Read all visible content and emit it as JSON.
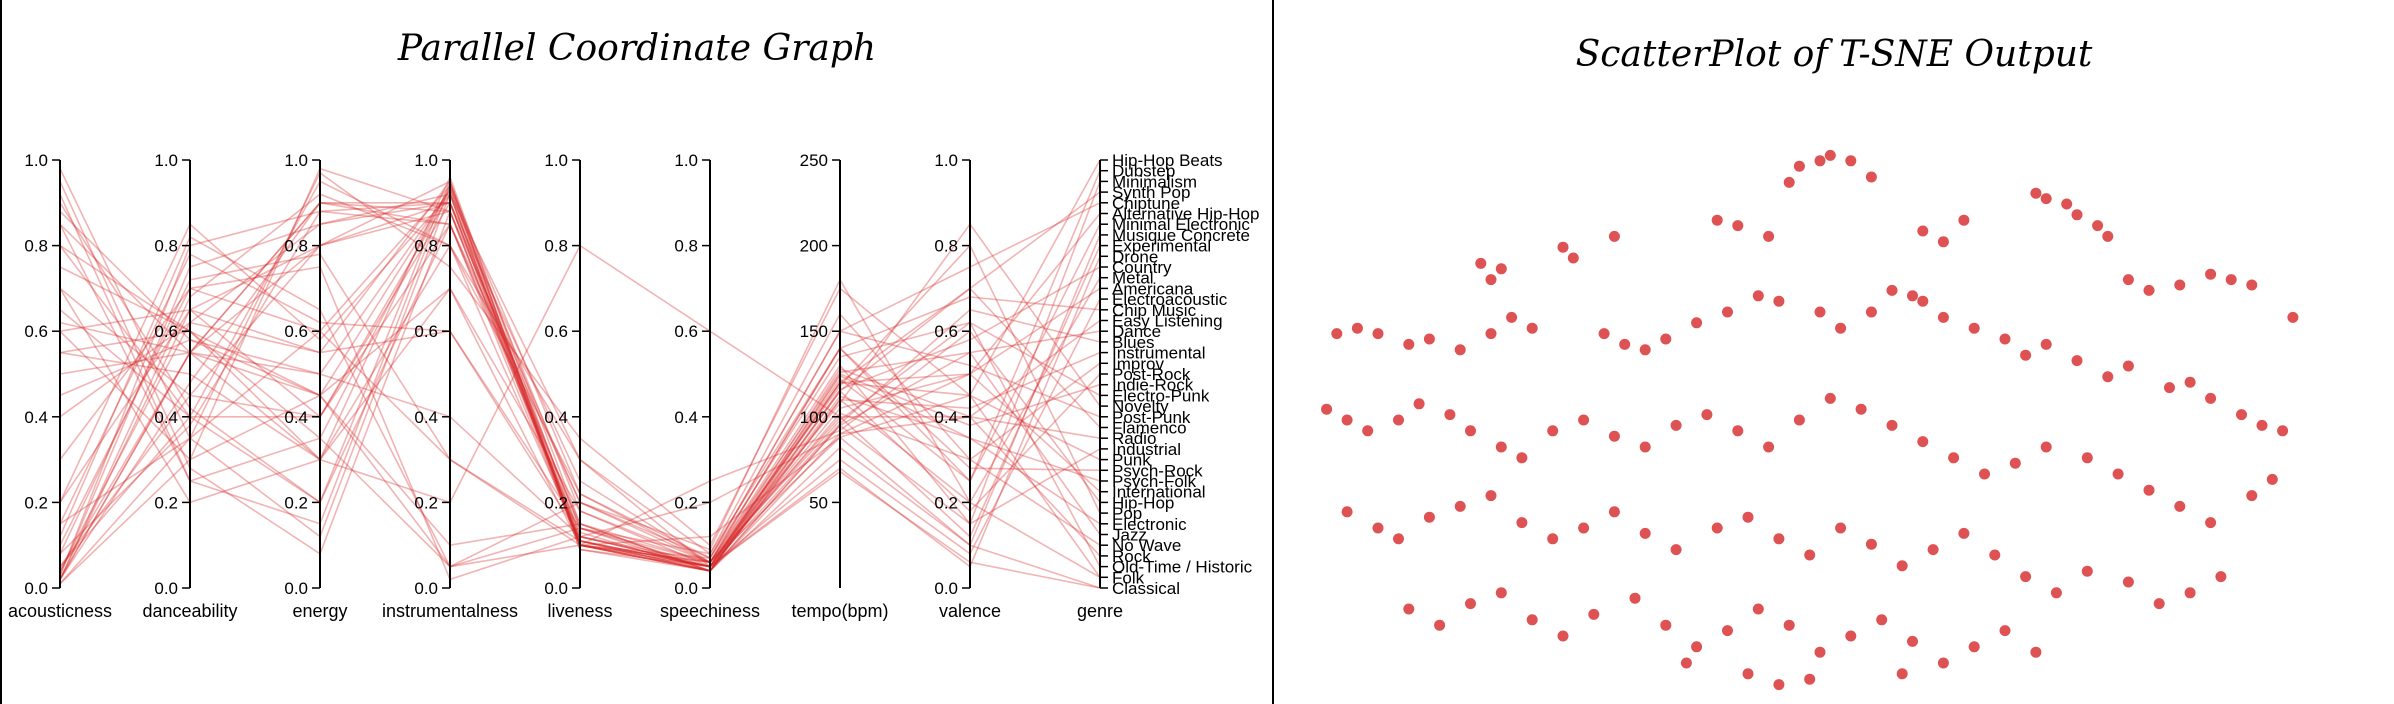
{
  "titles": {
    "parallel": "Parallel Coordinate Graph",
    "tsne": "ScatterPlot of T-SNE Output"
  },
  "colors": {
    "line": "#d62728",
    "dot": "#d62728",
    "axis": "#000000"
  },
  "chart_data": [
    {
      "type": "parallel-coordinates",
      "title": "Parallel Coordinate Graph",
      "axes": [
        {
          "name": "acousticness",
          "range": [
            0,
            1
          ],
          "ticks": [
            "0.0",
            "0.2",
            "0.4",
            "0.6",
            "0.8",
            "1.0"
          ]
        },
        {
          "name": "danceability",
          "range": [
            0,
            1
          ],
          "ticks": [
            "0.0",
            "0.2",
            "0.4",
            "0.6",
            "0.8",
            "1.0"
          ]
        },
        {
          "name": "energy",
          "range": [
            0,
            1
          ],
          "ticks": [
            "0.0",
            "0.2",
            "0.4",
            "0.6",
            "0.8",
            "1.0"
          ]
        },
        {
          "name": "instrumentalness",
          "range": [
            0,
            1
          ],
          "ticks": [
            "0.0",
            "0.2",
            "0.4",
            "0.6",
            "0.8",
            "1.0"
          ]
        },
        {
          "name": "liveness",
          "range": [
            0,
            1
          ],
          "ticks": [
            "0.0",
            "0.2",
            "0.4",
            "0.6",
            "0.8",
            "1.0"
          ]
        },
        {
          "name": "speechiness",
          "range": [
            0,
            1
          ],
          "ticks": [
            "0.0",
            "0.2",
            "0.4",
            "0.6",
            "0.8",
            "1.0"
          ]
        },
        {
          "name": "tempo(bpm)",
          "range": [
            0,
            250
          ],
          "ticks": [
            "50",
            "100",
            "150",
            "200",
            "250"
          ]
        },
        {
          "name": "valence",
          "range": [
            0,
            1
          ],
          "ticks": [
            "0.0",
            "0.2",
            "0.4",
            "0.6",
            "0.8",
            "1.0"
          ]
        },
        {
          "name": "genre",
          "type": "categorical"
        }
      ],
      "genres": [
        "Hip-Hop Beats",
        "Dubstep",
        "Minimalism",
        "Synth Pop",
        "Chiptune",
        "Alternative Hip-Hop",
        "Minimal Electronic",
        "Musique Concrete",
        "Experimental",
        "Drone",
        "Country",
        "Metal",
        "Americana",
        "Electroacoustic",
        "Chip Music",
        "Easy Listening",
        "Dance",
        "Blues",
        "Instrumental",
        "Improv",
        "Post-Rock",
        "Indie-Rock",
        "Electro-Punk",
        "Novelty",
        "Post-Punk",
        "Flamenco",
        "Radio",
        "Industrial",
        "Punk",
        "Psych-Rock",
        "Psych-Folk",
        "International",
        "Hip-Hop",
        "Pop",
        "Electronic",
        "Jazz",
        "No Wave",
        "Rock",
        "Old-Time / Historic",
        "Folk",
        "Classical"
      ],
      "records": [
        [
          0.98,
          0.35,
          0.12,
          0.92,
          0.1,
          0.04,
          82,
          0.1,
          "Classical"
        ],
        [
          0.95,
          0.28,
          0.08,
          0.88,
          0.12,
          0.05,
          68,
          0.06,
          "Classical"
        ],
        [
          0.9,
          0.42,
          0.2,
          0.85,
          0.15,
          0.04,
          110,
          0.2,
          "Folk"
        ],
        [
          0.85,
          0.55,
          0.3,
          0.7,
          0.1,
          0.05,
          120,
          0.45,
          "Folk"
        ],
        [
          0.8,
          0.6,
          0.35,
          0.05,
          0.2,
          0.06,
          98,
          0.62,
          "Old-Time / Historic"
        ],
        [
          0.02,
          0.55,
          0.9,
          0.88,
          0.11,
          0.05,
          128,
          0.4,
          "Rock"
        ],
        [
          0.05,
          0.4,
          0.95,
          0.8,
          0.3,
          0.08,
          160,
          0.3,
          "No Wave"
        ],
        [
          0.6,
          0.65,
          0.4,
          0.9,
          0.1,
          0.04,
          95,
          0.55,
          "Jazz"
        ],
        [
          0.03,
          0.75,
          0.85,
          0.92,
          0.09,
          0.05,
          124,
          0.35,
          "Electronic"
        ],
        [
          0.1,
          0.7,
          0.75,
          0.02,
          0.12,
          0.06,
          118,
          0.8,
          "Pop"
        ],
        [
          0.12,
          0.82,
          0.65,
          0.05,
          0.1,
          0.25,
          92,
          0.6,
          "Hip-Hop"
        ],
        [
          0.4,
          0.62,
          0.55,
          0.6,
          0.14,
          0.05,
          105,
          0.5,
          "International"
        ],
        [
          0.7,
          0.45,
          0.4,
          0.85,
          0.13,
          0.04,
          112,
          0.35,
          "Psych-Folk"
        ],
        [
          0.08,
          0.38,
          0.88,
          0.9,
          0.25,
          0.06,
          140,
          0.28,
          "Psych-Rock"
        ],
        [
          0.01,
          0.35,
          0.97,
          0.75,
          0.35,
          0.1,
          175,
          0.45,
          "Punk"
        ],
        [
          0.04,
          0.55,
          0.8,
          0.95,
          0.15,
          0.06,
          130,
          0.15,
          "Industrial"
        ],
        [
          0.55,
          0.5,
          0.3,
          0.2,
          0.8,
          0.6,
          100,
          0.4,
          "Radio"
        ],
        [
          0.88,
          0.58,
          0.45,
          0.7,
          0.18,
          0.05,
          115,
          0.7,
          "Flamenco"
        ],
        [
          0.02,
          0.48,
          0.9,
          0.85,
          0.2,
          0.07,
          150,
          0.52,
          "Post-Punk"
        ],
        [
          0.3,
          0.7,
          0.6,
          0.3,
          0.1,
          0.06,
          108,
          0.85,
          "Novelty"
        ],
        [
          0.02,
          0.68,
          0.92,
          0.8,
          0.22,
          0.07,
          135,
          0.62,
          "Electro-Punk"
        ],
        [
          0.05,
          0.45,
          0.8,
          0.9,
          0.11,
          0.04,
          125,
          0.38,
          "Indie-Rock"
        ],
        [
          0.15,
          0.35,
          0.6,
          0.94,
          0.1,
          0.04,
          115,
          0.18,
          "Post-Rock"
        ],
        [
          0.65,
          0.4,
          0.4,
          0.92,
          0.3,
          0.05,
          102,
          0.3,
          "Improv"
        ],
        [
          0.5,
          0.55,
          0.5,
          0.93,
          0.1,
          0.04,
          110,
          0.42,
          "Instrumental"
        ],
        [
          0.45,
          0.58,
          0.5,
          0.4,
          0.12,
          0.05,
          96,
          0.65,
          "Blues"
        ],
        [
          0.03,
          0.8,
          0.88,
          0.85,
          0.1,
          0.06,
          126,
          0.55,
          "Dance"
        ],
        [
          0.75,
          0.6,
          0.3,
          0.8,
          0.11,
          0.04,
          90,
          0.4,
          "Easy Listening"
        ],
        [
          0.04,
          0.62,
          0.85,
          0.9,
          0.14,
          0.06,
          140,
          0.68,
          "Chip Music"
        ],
        [
          0.92,
          0.25,
          0.15,
          0.94,
          0.11,
          0.05,
          75,
          0.08,
          "Electroacoustic"
        ],
        [
          0.62,
          0.55,
          0.45,
          0.1,
          0.15,
          0.04,
          120,
          0.5,
          "Americana"
        ],
        [
          0.01,
          0.3,
          0.98,
          0.88,
          0.2,
          0.09,
          180,
          0.2,
          "Metal"
        ],
        [
          0.55,
          0.6,
          0.45,
          0.05,
          0.14,
          0.04,
          116,
          0.58,
          "Country"
        ],
        [
          0.7,
          0.2,
          0.3,
          0.96,
          0.12,
          0.05,
          70,
          0.05,
          "Drone"
        ],
        [
          0.6,
          0.3,
          0.45,
          0.93,
          0.18,
          0.06,
          100,
          0.12,
          "Experimental"
        ],
        [
          0.85,
          0.25,
          0.35,
          0.94,
          0.22,
          0.06,
          88,
          0.1,
          "Musique Concrete"
        ],
        [
          0.2,
          0.65,
          0.55,
          0.95,
          0.1,
          0.05,
          122,
          0.25,
          "Minimal Electronic"
        ],
        [
          0.15,
          0.78,
          0.62,
          0.6,
          0.12,
          0.2,
          90,
          0.5,
          "Alternative Hip-Hop"
        ],
        [
          0.02,
          0.65,
          0.8,
          0.88,
          0.1,
          0.07,
          150,
          0.75,
          "Chiptune"
        ],
        [
          0.08,
          0.72,
          0.78,
          0.3,
          0.11,
          0.05,
          120,
          0.7,
          "Synth Pop"
        ],
        [
          0.8,
          0.4,
          0.2,
          0.95,
          0.09,
          0.04,
          95,
          0.15,
          "Minimalism"
        ],
        [
          0.02,
          0.55,
          0.9,
          0.9,
          0.14,
          0.08,
          140,
          0.25,
          "Dubstep"
        ],
        [
          0.2,
          0.85,
          0.58,
          0.92,
          0.1,
          0.12,
          88,
          0.45,
          "Hip-Hop Beats"
        ]
      ]
    },
    {
      "type": "scatter",
      "title": "ScatterPlot of T-SNE Output",
      "xlim": [
        0,
        1
      ],
      "ylim": [
        0,
        1
      ],
      "points": [
        [
          0.5,
          0.02
        ],
        [
          0.51,
          0.01
        ],
        [
          0.53,
          0.02
        ],
        [
          0.48,
          0.03
        ],
        [
          0.55,
          0.05
        ],
        [
          0.47,
          0.06
        ],
        [
          0.17,
          0.21
        ],
        [
          0.18,
          0.24
        ],
        [
          0.19,
          0.22
        ],
        [
          0.25,
          0.18
        ],
        [
          0.26,
          0.2
        ],
        [
          0.3,
          0.16
        ],
        [
          0.4,
          0.13
        ],
        [
          0.42,
          0.14
        ],
        [
          0.45,
          0.16
        ],
        [
          0.6,
          0.15
        ],
        [
          0.62,
          0.17
        ],
        [
          0.64,
          0.13
        ],
        [
          0.71,
          0.08
        ],
        [
          0.72,
          0.09
        ],
        [
          0.74,
          0.1
        ],
        [
          0.75,
          0.12
        ],
        [
          0.77,
          0.14
        ],
        [
          0.78,
          0.16
        ],
        [
          0.8,
          0.24
        ],
        [
          0.82,
          0.26
        ],
        [
          0.85,
          0.25
        ],
        [
          0.88,
          0.23
        ],
        [
          0.9,
          0.24
        ],
        [
          0.92,
          0.25
        ],
        [
          0.96,
          0.31
        ],
        [
          0.03,
          0.34
        ],
        [
          0.05,
          0.33
        ],
        [
          0.07,
          0.34
        ],
        [
          0.1,
          0.36
        ],
        [
          0.12,
          0.35
        ],
        [
          0.15,
          0.37
        ],
        [
          0.18,
          0.34
        ],
        [
          0.2,
          0.31
        ],
        [
          0.22,
          0.33
        ],
        [
          0.29,
          0.34
        ],
        [
          0.31,
          0.36
        ],
        [
          0.33,
          0.37
        ],
        [
          0.35,
          0.35
        ],
        [
          0.38,
          0.32
        ],
        [
          0.41,
          0.3
        ],
        [
          0.44,
          0.27
        ],
        [
          0.46,
          0.28
        ],
        [
          0.5,
          0.3
        ],
        [
          0.52,
          0.33
        ],
        [
          0.55,
          0.3
        ],
        [
          0.57,
          0.26
        ],
        [
          0.59,
          0.27
        ],
        [
          0.6,
          0.28
        ],
        [
          0.62,
          0.31
        ],
        [
          0.65,
          0.33
        ],
        [
          0.68,
          0.35
        ],
        [
          0.7,
          0.38
        ],
        [
          0.72,
          0.36
        ],
        [
          0.75,
          0.39
        ],
        [
          0.78,
          0.42
        ],
        [
          0.8,
          0.4
        ],
        [
          0.84,
          0.44
        ],
        [
          0.86,
          0.43
        ],
        [
          0.88,
          0.46
        ],
        [
          0.91,
          0.49
        ],
        [
          0.93,
          0.51
        ],
        [
          0.95,
          0.52
        ],
        [
          0.02,
          0.48
        ],
        [
          0.04,
          0.5
        ],
        [
          0.06,
          0.52
        ],
        [
          0.09,
          0.5
        ],
        [
          0.11,
          0.47
        ],
        [
          0.14,
          0.49
        ],
        [
          0.16,
          0.52
        ],
        [
          0.19,
          0.55
        ],
        [
          0.21,
          0.57
        ],
        [
          0.24,
          0.52
        ],
        [
          0.27,
          0.5
        ],
        [
          0.3,
          0.53
        ],
        [
          0.33,
          0.55
        ],
        [
          0.36,
          0.51
        ],
        [
          0.39,
          0.49
        ],
        [
          0.42,
          0.52
        ],
        [
          0.45,
          0.55
        ],
        [
          0.48,
          0.5
        ],
        [
          0.51,
          0.46
        ],
        [
          0.54,
          0.48
        ],
        [
          0.57,
          0.51
        ],
        [
          0.6,
          0.54
        ],
        [
          0.63,
          0.57
        ],
        [
          0.66,
          0.6
        ],
        [
          0.69,
          0.58
        ],
        [
          0.72,
          0.55
        ],
        [
          0.76,
          0.57
        ],
        [
          0.79,
          0.6
        ],
        [
          0.82,
          0.63
        ],
        [
          0.85,
          0.66
        ],
        [
          0.88,
          0.69
        ],
        [
          0.92,
          0.64
        ],
        [
          0.94,
          0.61
        ],
        [
          0.04,
          0.67
        ],
        [
          0.07,
          0.7
        ],
        [
          0.09,
          0.72
        ],
        [
          0.12,
          0.68
        ],
        [
          0.15,
          0.66
        ],
        [
          0.18,
          0.64
        ],
        [
          0.21,
          0.69
        ],
        [
          0.24,
          0.72
        ],
        [
          0.27,
          0.7
        ],
        [
          0.3,
          0.67
        ],
        [
          0.33,
          0.71
        ],
        [
          0.36,
          0.74
        ],
        [
          0.4,
          0.7
        ],
        [
          0.43,
          0.68
        ],
        [
          0.46,
          0.72
        ],
        [
          0.49,
          0.75
        ],
        [
          0.52,
          0.7
        ],
        [
          0.55,
          0.73
        ],
        [
          0.58,
          0.77
        ],
        [
          0.61,
          0.74
        ],
        [
          0.64,
          0.71
        ],
        [
          0.67,
          0.75
        ],
        [
          0.7,
          0.79
        ],
        [
          0.73,
          0.82
        ],
        [
          0.76,
          0.78
        ],
        [
          0.8,
          0.8
        ],
        [
          0.83,
          0.84
        ],
        [
          0.86,
          0.82
        ],
        [
          0.89,
          0.79
        ],
        [
          0.1,
          0.85
        ],
        [
          0.13,
          0.88
        ],
        [
          0.16,
          0.84
        ],
        [
          0.19,
          0.82
        ],
        [
          0.22,
          0.87
        ],
        [
          0.25,
          0.9
        ],
        [
          0.28,
          0.86
        ],
        [
          0.32,
          0.83
        ],
        [
          0.35,
          0.88
        ],
        [
          0.38,
          0.92
        ],
        [
          0.41,
          0.89
        ],
        [
          0.44,
          0.85
        ],
        [
          0.47,
          0.88
        ],
        [
          0.5,
          0.93
        ],
        [
          0.53,
          0.9
        ],
        [
          0.56,
          0.87
        ],
        [
          0.59,
          0.91
        ],
        [
          0.62,
          0.95
        ],
        [
          0.65,
          0.92
        ],
        [
          0.68,
          0.89
        ],
        [
          0.71,
          0.93
        ],
        [
          0.43,
          0.97
        ],
        [
          0.46,
          0.99
        ],
        [
          0.49,
          0.98
        ],
        [
          0.37,
          0.95
        ],
        [
          0.58,
          0.97
        ]
      ]
    }
  ]
}
